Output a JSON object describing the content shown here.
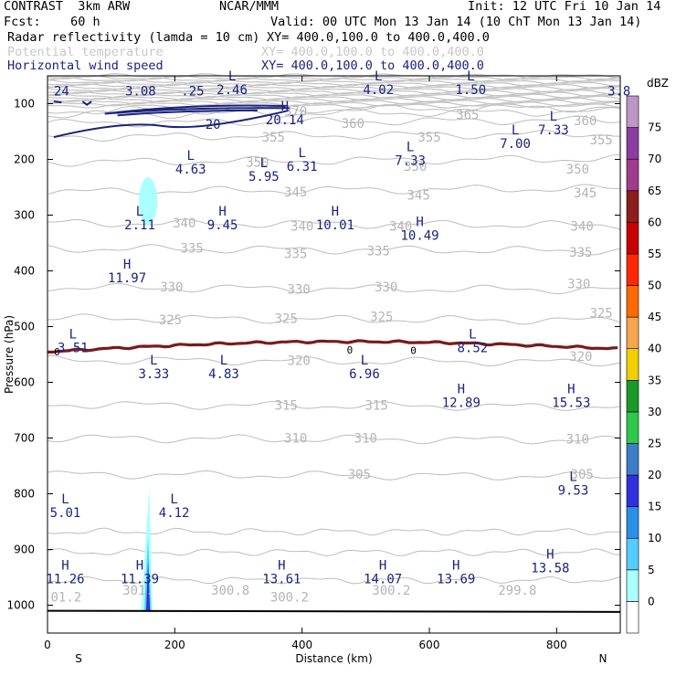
{
  "header": {
    "model": "CONTRAST  3km ARW",
    "org": "NCAR/MMM",
    "init": "Init: 12 UTC Fri 10 Jan 14",
    "fcst": "Fcst:    60 h",
    "valid": "Valid: 00 UTC Mon 13 Jan 14 (10 ChT Mon 13 Jan 14)",
    "fields": [
      {
        "name": "Radar reflectivity (lamda = 10 cm)",
        "xy": "XY= 400.0,100.0 to 400.0,400.0"
      },
      {
        "name": "Potential temperature",
        "xy": "XY= 400.0,100.0 to 400.0,400.0"
      },
      {
        "name": "Horizontal wind speed",
        "xy": "XY= 400.0,100.0 to 400.0,400.0"
      }
    ]
  },
  "chart_data": {
    "type": "cross-section",
    "xlabel": "Distance (km)",
    "ylabel": "Pressure (hPa)",
    "xlim": [
      0,
      900
    ],
    "ylim": [
      1050,
      50
    ],
    "x_ticks": [
      0,
      200,
      400,
      600,
      800
    ],
    "y_ticks": [
      100,
      200,
      300,
      400,
      500,
      600,
      700,
      800,
      900,
      1000
    ],
    "x_end_labels": {
      "left": "S",
      "right": "N"
    },
    "colorbar": {
      "unit": "dBZ",
      "levels": [
        0,
        5,
        10,
        15,
        20,
        25,
        30,
        35,
        40,
        45,
        50,
        55,
        60,
        65,
        70,
        75
      ],
      "colors": [
        "#ffffff",
        "#aaffff",
        "#55ccff",
        "#2a8fe6",
        "#3030dd",
        "#3c7fc8",
        "#2ec84a",
        "#1a9a28",
        "#f0d000",
        "#f5a550",
        "#ff6a00",
        "#ff2800",
        "#c80000",
        "#8c1e1e",
        "#a03c8c",
        "#8c3ca0",
        "#be96c8"
      ]
    },
    "theta_levels": [
      {
        "value": 370,
        "p": 113
      },
      {
        "value": 365,
        "p": 120
      },
      {
        "value": 360,
        "p": 135
      },
      {
        "value": 355,
        "p": 160
      },
      {
        "value": 350,
        "p": 205
      },
      {
        "value": 345,
        "p": 258
      },
      {
        "value": 340,
        "p": 314
      },
      {
        "value": 335,
        "p": 360
      },
      {
        "value": 330,
        "p": 430
      },
      {
        "value": 325,
        "p": 485
      },
      {
        "value": 320,
        "p": 560
      },
      {
        "value": 315,
        "p": 640
      },
      {
        "value": 310,
        "p": 700
      },
      {
        "value": 305,
        "p": 765
      }
    ],
    "theta_labels": [
      {
        "text": "370",
        "x": 390,
        "p": 113
      },
      {
        "text": "365",
        "x": 660,
        "p": 120
      },
      {
        "text": "360",
        "x": 480,
        "p": 135
      },
      {
        "text": "360",
        "x": 845,
        "p": 130
      },
      {
        "text": "355",
        "x": 355,
        "p": 160
      },
      {
        "text": "355",
        "x": 600,
        "p": 160
      },
      {
        "text": "355",
        "x": 870,
        "p": 165
      },
      {
        "text": "350",
        "x": 330,
        "p": 205
      },
      {
        "text": "350",
        "x": 578,
        "p": 212
      },
      {
        "text": "350",
        "x": 833,
        "p": 217
      },
      {
        "text": "345",
        "x": 390,
        "p": 258
      },
      {
        "text": "345",
        "x": 583,
        "p": 264
      },
      {
        "text": "345",
        "x": 845,
        "p": 260
      },
      {
        "text": "340",
        "x": 215,
        "p": 314
      },
      {
        "text": "340",
        "x": 400,
        "p": 320
      },
      {
        "text": "340",
        "x": 555,
        "p": 320
      },
      {
        "text": "340",
        "x": 840,
        "p": 320
      },
      {
        "text": "335",
        "x": 227,
        "p": 359
      },
      {
        "text": "335",
        "x": 390,
        "p": 369
      },
      {
        "text": "335",
        "x": 520,
        "p": 364
      },
      {
        "text": "335",
        "x": 838,
        "p": 366
      },
      {
        "text": "330",
        "x": 195,
        "p": 429
      },
      {
        "text": "330",
        "x": 395,
        "p": 433
      },
      {
        "text": "330",
        "x": 532,
        "p": 429
      },
      {
        "text": "330",
        "x": 835,
        "p": 423
      },
      {
        "text": "325",
        "x": 193,
        "p": 488
      },
      {
        "text": "325",
        "x": 375,
        "p": 485
      },
      {
        "text": "325",
        "x": 525,
        "p": 482
      },
      {
        "text": "325",
        "x": 870,
        "p": 475
      },
      {
        "text": "320",
        "x": 395,
        "p": 561
      },
      {
        "text": "320",
        "x": 838,
        "p": 553
      },
      {
        "text": "315",
        "x": 375,
        "p": 641
      },
      {
        "text": "315",
        "x": 517,
        "p": 641
      },
      {
        "text": "310",
        "x": 390,
        "p": 700
      },
      {
        "text": "310",
        "x": 500,
        "p": 700
      },
      {
        "text": "310",
        "x": 833,
        "p": 702
      },
      {
        "text": "305",
        "x": 490,
        "p": 765
      },
      {
        "text": "305",
        "x": 840,
        "p": 765
      }
    ],
    "hl_marks": [
      {
        "type": "L",
        "x": 290,
        "p": 58,
        "value": "2.46"
      },
      {
        "type": "L",
        "x": 520,
        "p": 58,
        "value": "4.02"
      },
      {
        "type": "L",
        "x": 665,
        "p": 58,
        "value": "1.50"
      },
      {
        "type": "L",
        "x": 795,
        "p": 130,
        "value": "7.33"
      },
      {
        "type": "L",
        "x": 735,
        "p": 155,
        "value": "7.00"
      },
      {
        "type": "L",
        "x": 570,
        "p": 185,
        "value": "7.33"
      },
      {
        "type": "L",
        "x": 400,
        "p": 196,
        "value": "6.31"
      },
      {
        "type": "L",
        "x": 225,
        "p": 201,
        "value": "4.63"
      },
      {
        "type": "L",
        "x": 340,
        "p": 214,
        "value": "5.95"
      },
      {
        "type": "L",
        "x": 145,
        "p": 301,
        "value": "2.11"
      },
      {
        "type": "H",
        "x": 275,
        "p": 301,
        "value": "9.45"
      },
      {
        "type": "H",
        "x": 452,
        "p": 301,
        "value": "10.01"
      },
      {
        "type": "H",
        "x": 585,
        "p": 320,
        "value": "10.49"
      },
      {
        "type": "H",
        "x": 125,
        "p": 396,
        "value": "11.97"
      },
      {
        "type": "H",
        "x": 373,
        "p": 112,
        "value": "20.14"
      },
      {
        "type": "L",
        "x": 40,
        "p": 521,
        "value": "3.51"
      },
      {
        "type": "L",
        "x": 668,
        "p": 521,
        "value": "8.52"
      },
      {
        "type": "L",
        "x": 167,
        "p": 568,
        "value": "3.33"
      },
      {
        "type": "L",
        "x": 277,
        "p": 568,
        "value": "4.83"
      },
      {
        "type": "L",
        "x": 498,
        "p": 568,
        "value": "6.96"
      },
      {
        "type": "H",
        "x": 650,
        "p": 620,
        "value": "12.89"
      },
      {
        "type": "H",
        "x": 823,
        "p": 620,
        "value": "15.53"
      },
      {
        "type": "L",
        "x": 826,
        "p": 777,
        "value": "9.53"
      },
      {
        "type": "L",
        "x": 28,
        "p": 817,
        "value": "5.01"
      },
      {
        "type": "L",
        "x": 199,
        "p": 817,
        "value": "4.12"
      },
      {
        "type": "H",
        "x": 28,
        "p": 936,
        "value": "11.26"
      },
      {
        "type": "H",
        "x": 145,
        "p": 936,
        "value": "11.39"
      },
      {
        "type": "H",
        "x": 368,
        "p": 936,
        "value": "13.61"
      },
      {
        "type": "H",
        "x": 527,
        "p": 936,
        "value": "14.07"
      },
      {
        "type": "H",
        "x": 642,
        "p": 936,
        "value": "13.69"
      },
      {
        "type": "H",
        "x": 790,
        "p": 916,
        "value": "13.58"
      }
    ],
    "partial_labels": [
      {
        "text": "24",
        "x": 10,
        "p": 77,
        "color": "#1a237e"
      },
      {
        "text": "3.08",
        "x": 122,
        "p": 77,
        "color": "#1a237e"
      },
      {
        "text": ".25",
        "x": 210,
        "p": 77,
        "color": "#1a237e"
      },
      {
        "text": "3.8",
        "x": 880,
        "p": 77,
        "color": "#1a237e"
      },
      {
        "text": "01.2",
        "x": 5,
        "p": 985,
        "color": "#b4b4b4"
      },
      {
        "text": "301.",
        "x": 118,
        "p": 973,
        "color": "#b4b4b4"
      },
      {
        "text": "300.8",
        "x": 257,
        "p": 973,
        "color": "#b4b4b4"
      },
      {
        "text": "300.2",
        "x": 350,
        "p": 985,
        "color": "#b4b4b4"
      },
      {
        "text": "300.2",
        "x": 510,
        "p": 973,
        "color": "#b4b4b4"
      },
      {
        "text": "299.8",
        "x": 708,
        "p": 973,
        "color": "#b4b4b4"
      }
    ],
    "wind_contours": [
      {
        "value": 20,
        "label_x": 260,
        "label_p": 137
      }
    ],
    "zero_dbz_labels": [
      {
        "x": 15,
        "p": 545
      },
      {
        "x": 475,
        "p": 542
      },
      {
        "x": 575,
        "p": 543
      }
    ]
  }
}
